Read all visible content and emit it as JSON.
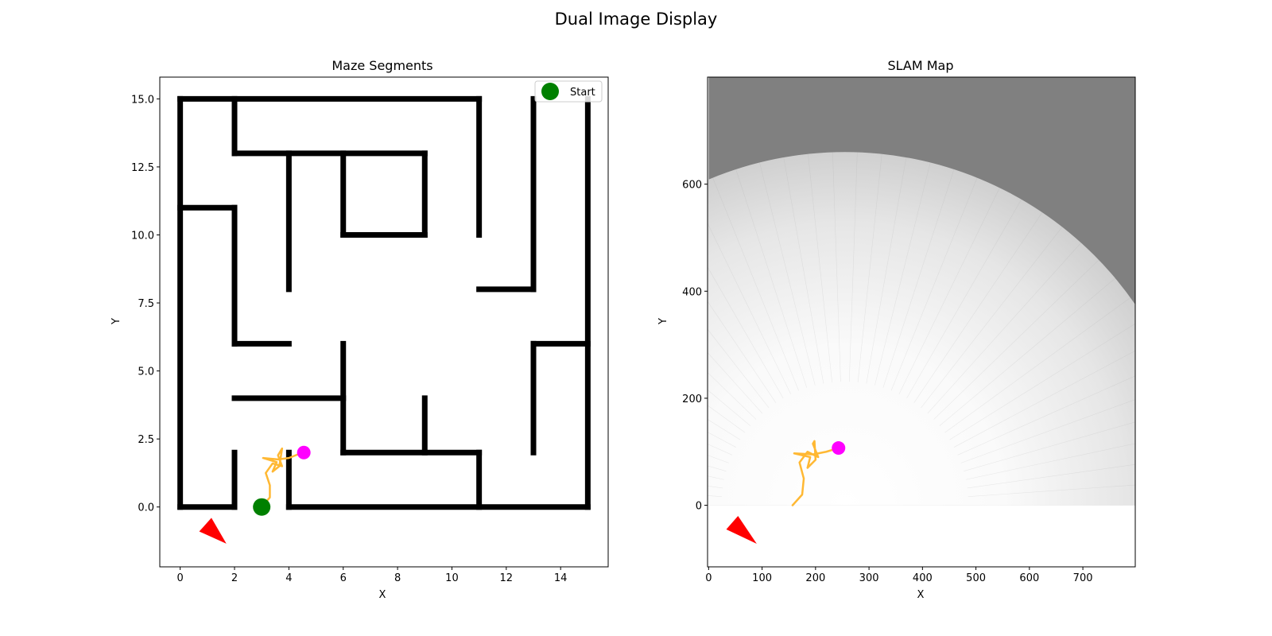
{
  "figure": {
    "suptitle": "Dual Image Display"
  },
  "chart_data": [
    {
      "type": "line",
      "title": "Maze Segments",
      "xlabel": "X",
      "ylabel": "Y",
      "xlim": [
        -0.75,
        15.75
      ],
      "ylim": [
        -2.2,
        15.8
      ],
      "xticks": [
        0,
        2,
        4,
        6,
        8,
        10,
        12,
        14
      ],
      "yticks": [
        0.0,
        2.5,
        5.0,
        7.5,
        10.0,
        12.5,
        15.0
      ],
      "ytick_labels": [
        "0.0",
        "2.5",
        "5.0",
        "7.5",
        "10.0",
        "12.5",
        "15.0"
      ],
      "grid": false,
      "legend": {
        "placement": "top-right",
        "entries": [
          {
            "label": "Start",
            "color": "#008000"
          }
        ]
      },
      "wall_color": "#000000",
      "walls": [
        [
          [
            0,
            15
          ],
          [
            11,
            15
          ]
        ],
        [
          [
            0,
            0
          ],
          [
            0,
            15
          ]
        ],
        [
          [
            0,
            0
          ],
          [
            2,
            0
          ]
        ],
        [
          [
            2,
            0
          ],
          [
            2,
            2
          ]
        ],
        [
          [
            4,
            0
          ],
          [
            15,
            0
          ]
        ],
        [
          [
            4,
            0
          ],
          [
            4,
            2
          ]
        ],
        [
          [
            15,
            0
          ],
          [
            15,
            15
          ]
        ],
        [
          [
            2,
            13
          ],
          [
            2,
            15
          ]
        ],
        [
          [
            2,
            13
          ],
          [
            9,
            13
          ]
        ],
        [
          [
            4,
            8
          ],
          [
            4,
            13
          ]
        ],
        [
          [
            6,
            10
          ],
          [
            6,
            13
          ]
        ],
        [
          [
            6,
            10
          ],
          [
            9,
            10
          ]
        ],
        [
          [
            9,
            10
          ],
          [
            9,
            13
          ]
        ],
        [
          [
            11,
            10
          ],
          [
            11,
            15
          ]
        ],
        [
          [
            0,
            11
          ],
          [
            2,
            11
          ]
        ],
        [
          [
            2,
            6
          ],
          [
            2,
            11
          ]
        ],
        [
          [
            2,
            6
          ],
          [
            4,
            6
          ]
        ],
        [
          [
            13,
            8
          ],
          [
            13,
            15
          ]
        ],
        [
          [
            11,
            8
          ],
          [
            13,
            8
          ]
        ],
        [
          [
            13,
            6
          ],
          [
            15,
            6
          ]
        ],
        [
          [
            13,
            2
          ],
          [
            13,
            6
          ]
        ],
        [
          [
            2,
            4
          ],
          [
            6,
            4
          ]
        ],
        [
          [
            6,
            2
          ],
          [
            6,
            6
          ]
        ],
        [
          [
            6,
            2
          ],
          [
            11,
            2
          ]
        ],
        [
          [
            9,
            2
          ],
          [
            9,
            4
          ]
        ],
        [
          [
            11,
            0
          ],
          [
            11,
            2
          ]
        ]
      ],
      "trajectory_color": "#ffb833",
      "trajectory": [
        [
          3.0,
          0.0
        ],
        [
          3.3,
          0.35
        ],
        [
          3.3,
          0.8
        ],
        [
          3.15,
          1.25
        ],
        [
          3.4,
          1.6
        ],
        [
          3.75,
          1.5
        ],
        [
          3.6,
          1.9
        ],
        [
          3.75,
          2.15
        ],
        [
          3.65,
          1.5
        ],
        [
          3.4,
          1.3
        ],
        [
          3.55,
          1.65
        ],
        [
          3.05,
          1.8
        ],
        [
          3.6,
          1.75
        ],
        [
          4.0,
          1.8
        ],
        [
          4.5,
          2.0
        ]
      ],
      "start": {
        "x": 3.0,
        "y": 0.0,
        "color": "#008000"
      },
      "current": {
        "x": 4.55,
        "y": 2.0,
        "color": "#ff00ff"
      },
      "heading_marker": {
        "x": 1.15,
        "y": -0.9,
        "color": "#ff0000",
        "points": [
          [
            0.7,
            -0.9
          ],
          [
            1.15,
            -0.4
          ],
          [
            1.7,
            -1.35
          ]
        ]
      }
    },
    {
      "type": "heatmap",
      "title": "SLAM Map",
      "xlabel": "X",
      "ylabel": "Y",
      "xlim": [
        -2,
        798
      ],
      "ylim": [
        -115,
        800
      ],
      "xticks": [
        0,
        100,
        200,
        300,
        400,
        500,
        600,
        700
      ],
      "yticks": [
        0,
        200,
        400,
        600
      ],
      "grid": false,
      "map_extent": {
        "x": [
          0,
          800
        ],
        "y": [
          0,
          800
        ]
      },
      "unknown_color": "#808080",
      "free_color": "#ffffff",
      "scan_center": [
        255,
        0
      ],
      "scan_radius": 660,
      "trajectory_color": "#ffb833",
      "trajectory": [
        [
          157,
          0
        ],
        [
          175,
          20
        ],
        [
          178,
          50
        ],
        [
          170,
          80
        ],
        [
          185,
          100
        ],
        [
          205,
          90
        ],
        [
          195,
          115
        ],
        [
          198,
          120
        ],
        [
          200,
          85
        ],
        [
          185,
          70
        ],
        [
          190,
          90
        ],
        [
          160,
          97
        ],
        [
          195,
          95
        ],
        [
          220,
          100
        ],
        [
          243,
          107
        ]
      ],
      "current": {
        "x": 243,
        "y": 107,
        "color": "#ff00ff"
      },
      "heading_marker": {
        "x": 62,
        "y": -50,
        "color": "#ff0000",
        "points": [
          [
            33,
            -45
          ],
          [
            55,
            -20
          ],
          [
            90,
            -72
          ]
        ]
      }
    }
  ]
}
